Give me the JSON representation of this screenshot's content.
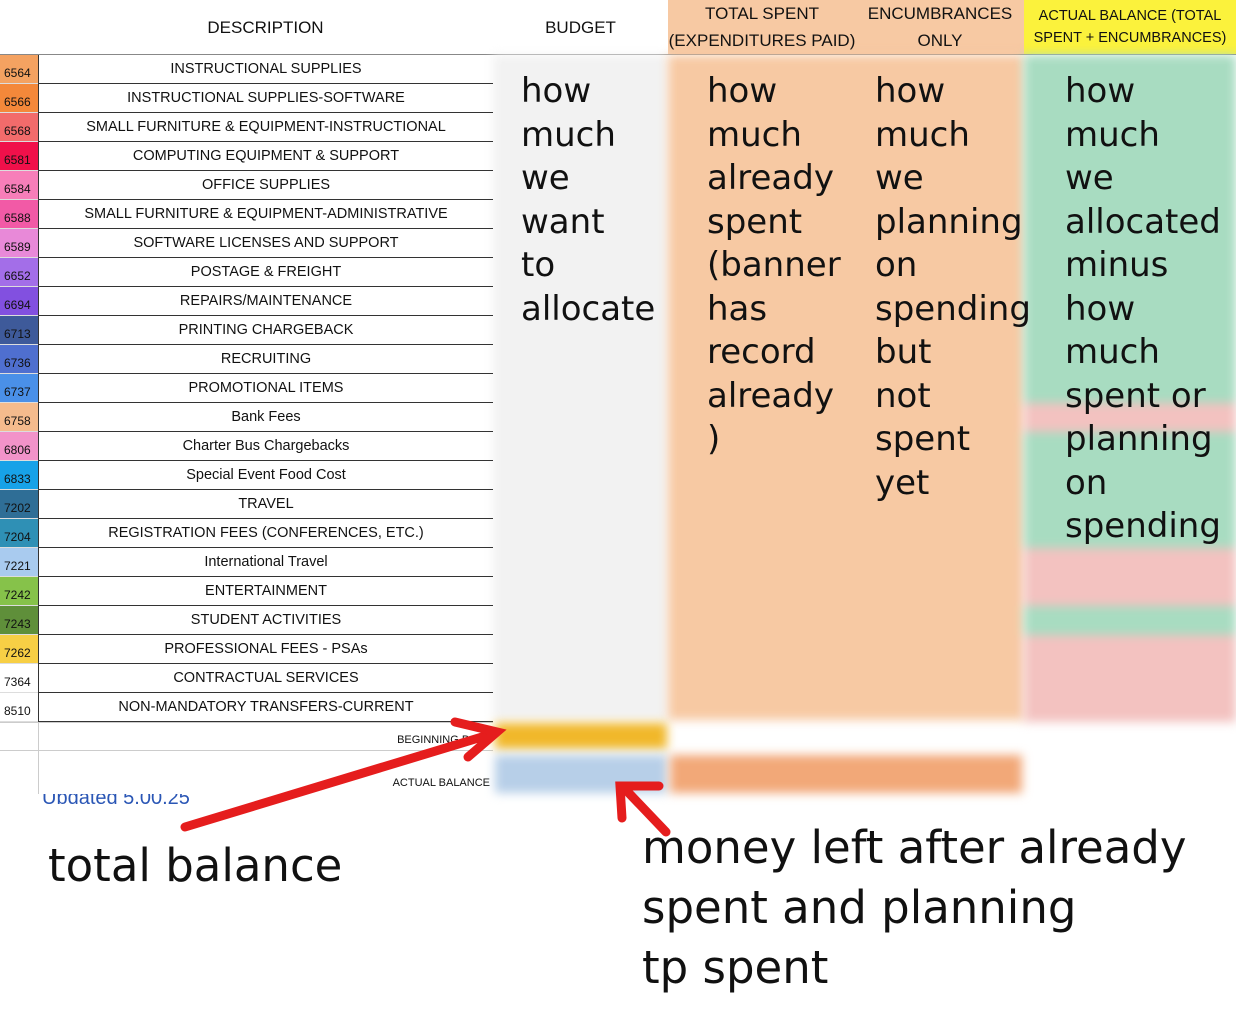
{
  "headers": {
    "description": "DESCRIPTION",
    "budget": "BUDGET",
    "total_spent_line1": "TOTAL SPENT",
    "total_spent_line2": "(EXPENDITURES PAID)",
    "encumbrances_line1": "ENCUMBRANCES",
    "encumbrances_line2": "ONLY",
    "actual_balance_line1": "ACTUAL BALANCE (TOTAL",
    "actual_balance_line2": "SPENT + ENCUMBRANCES)"
  },
  "rows": [
    {
      "code": "6564",
      "desc": "INSTRUCTIONAL SUPPLIES",
      "color": "#f4a261",
      "bal": "green"
    },
    {
      "code": "6566",
      "desc": "INSTRUCTIONAL SUPPLIES-SOFTWARE",
      "color": "#f4883a",
      "bal": "green"
    },
    {
      "code": "6568",
      "desc": "SMALL FURNITURE & EQUIPMENT-INSTRUCTIONAL",
      "color": "#f26b6b",
      "bal": "green"
    },
    {
      "code": "6581",
      "desc": "COMPUTING EQUIPMENT & SUPPORT",
      "color": "#f0104a",
      "bal": "green"
    },
    {
      "code": "6584",
      "desc": "OFFICE SUPPLIES",
      "color": "#f77eb9",
      "bal": "green"
    },
    {
      "code": "6588",
      "desc": "SMALL FURNITURE & EQUIPMENT-ADMINISTRATIVE",
      "color": "#f25aa6",
      "bal": "green"
    },
    {
      "code": "6589",
      "desc": "SOFTWARE LICENSES AND SUPPORT",
      "color": "#e889d8",
      "bal": "green"
    },
    {
      "code": "6652",
      "desc": "POSTAGE & FREIGHT",
      "color": "#a36ee8",
      "bal": "green"
    },
    {
      "code": "6694",
      "desc": "REPAIRS/MAINTENANCE",
      "color": "#8250e0",
      "bal": "green"
    },
    {
      "code": "6713",
      "desc": "PRINTING CHARGEBACK",
      "color": "#3e5a9a",
      "bal": "green"
    },
    {
      "code": "6736",
      "desc": "RECRUITING",
      "color": "#4f6fcf",
      "bal": "green"
    },
    {
      "code": "6737",
      "desc": "PROMOTIONAL ITEMS",
      "color": "#4a90e8",
      "bal": "green"
    },
    {
      "code": "6758",
      "desc": "Bank Fees",
      "color": "#f4bb8d",
      "bal": "red"
    },
    {
      "code": "6806",
      "desc": "Charter Bus Chargebacks",
      "color": "#f293c9",
      "bal": "green"
    },
    {
      "code": "6833",
      "desc": "Special Event Food Cost",
      "color": "#17a2e8",
      "bal": "green"
    },
    {
      "code": "7202",
      "desc": "TRAVEL",
      "color": "#2f6e96",
      "bal": "green"
    },
    {
      "code": "7204",
      "desc": "REGISTRATION FEES (CONFERENCES, ETC.)",
      "color": "#2f90b5",
      "bal": "green"
    },
    {
      "code": "7221",
      "desc": "International Travel",
      "color": "#a9cbef",
      "bal": "red"
    },
    {
      "code": "7242",
      "desc": "ENTERTAINMENT",
      "color": "#86c24a",
      "bal": "red"
    },
    {
      "code": "7243",
      "desc": "STUDENT ACTIVITIES",
      "color": "#5f8f3a",
      "bal": "green"
    },
    {
      "code": "7262",
      "desc": "PROFESSIONAL FEES - PSAs",
      "color": "#f7cf45",
      "bal": "red"
    },
    {
      "code": "7364",
      "desc": "CONTRACTUAL SERVICES",
      "color": "#ffffff",
      "bal": "red"
    },
    {
      "code": "8510",
      "desc": "NON-MANDATORY TRANSFERS-CURRENT",
      "color": "#ffffff",
      "bal": "red"
    }
  ],
  "footer": {
    "beginning_balance": "BEGINNING BALA",
    "actual_balance": "ACTUAL BALANCE",
    "updated": "Updated 5.00.25"
  },
  "annotations": {
    "budget": [
      "how",
      "much",
      "we",
      "want",
      "to",
      "allocate"
    ],
    "spent": [
      "how",
      "much",
      "already",
      "spent",
      "(banner",
      "has",
      "record",
      "already",
      ")"
    ],
    "encumbrances": [
      "how",
      "much",
      "we",
      "planning",
      "on",
      "spending",
      "but",
      "not",
      "spent",
      "yet"
    ],
    "balance": [
      "how",
      "much",
      "we",
      "allocated",
      "minus",
      "how",
      "much",
      "spent or",
      "planning",
      "on",
      "spending"
    ],
    "total_balance": "total balance",
    "money_left_1": "money left after already",
    "money_left_2": "spent and planning",
    "money_left_3": "tp spent"
  },
  "colors": {
    "orange": "#f7c9a3",
    "yellow": "#fbf23c",
    "green": "#a8dcc1",
    "red": "#f3c2c0",
    "gold": "#f1b82a",
    "light_blue": "#b7cfe8",
    "arrow": "#e51d1d"
  }
}
